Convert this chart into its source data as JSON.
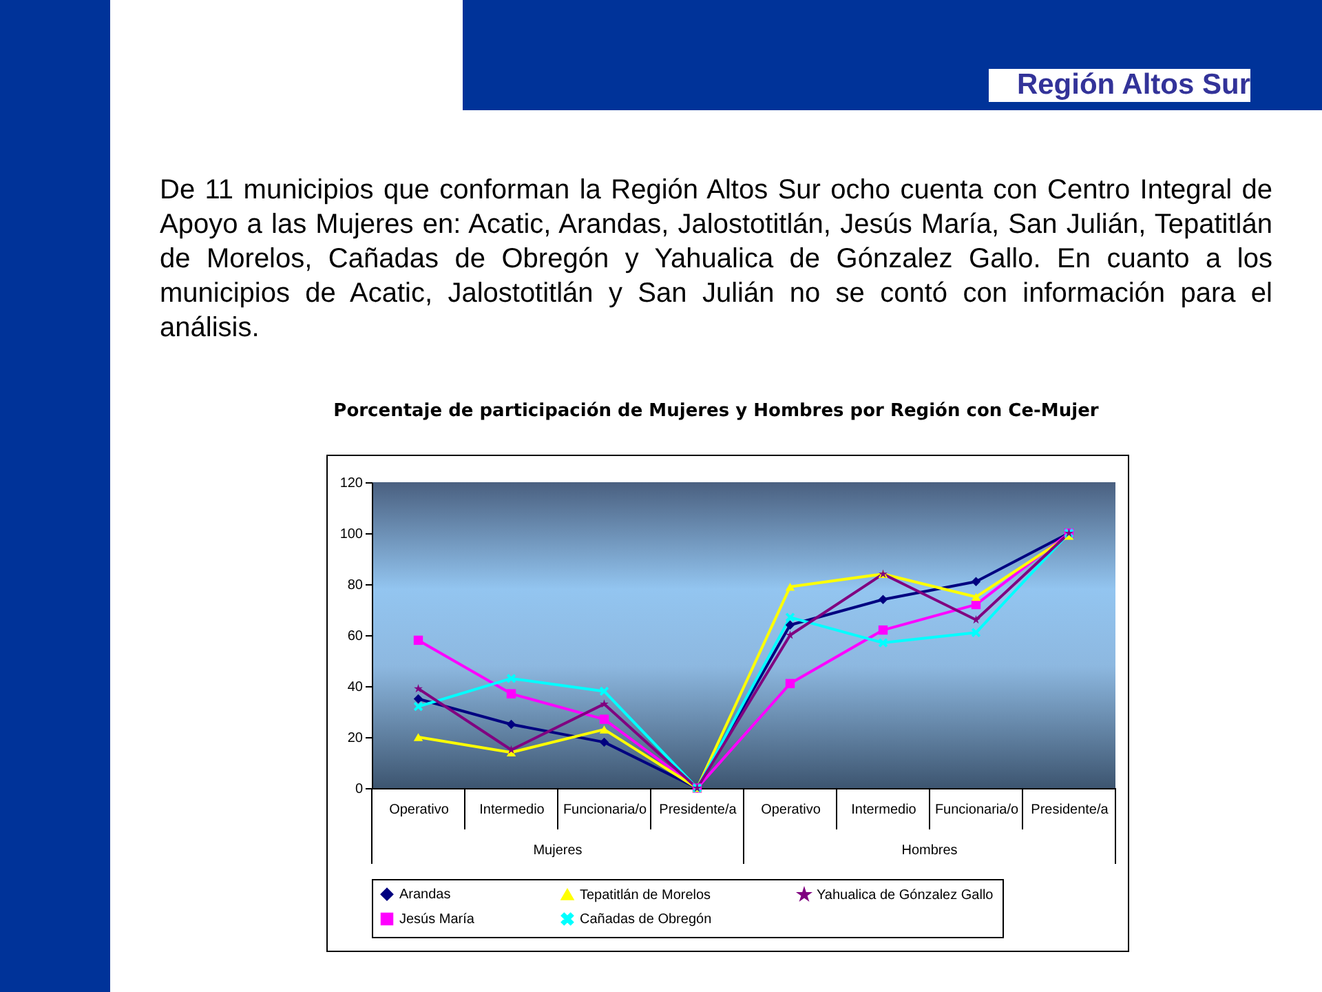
{
  "chart_data": {
    "type": "line",
    "title": "Región Altos Sur",
    "subtitle": "De 11 municipios que conforman la Región Altos Sur ocho cuenta con Centro Integral de Apoyo a las Mujeres en: Acatic, Arandas, Jalostotitlán, Jesús María, San Julián, Tepatitlán de Morelos, Cañadas de Obregón y Yahualica de Gónzalez Gallo. En cuanto a los municipios de Acatic, Jalostotitlán y San Julián no se contó con información para el análisis.",
    "annotations": [
      "Porcentaje de participación de Mujeres y Hombres por Región con Ce-Mujer",
      "Mujeres",
      "Hombres"
    ],
    "categories": [
      "Operativo",
      "Intermedio",
      "Funcionaria/o",
      "Presidente/a",
      "Operativo",
      "Intermedio",
      "Funcionaria/o",
      "Presidente/a"
    ],
    "series": [
      {
        "name": "Arandas",
        "color": "#000080",
        "marker": "diamond",
        "values": [
          35,
          25,
          18,
          0,
          64,
          74,
          81,
          100
        ]
      },
      {
        "name": "Jesús María",
        "color": "#ff00ff",
        "marker": "square",
        "values": [
          58,
          37,
          27,
          0,
          41,
          62,
          72,
          100
        ]
      },
      {
        "name": "Tepatitlán de Morelos",
        "color": "#ffff00",
        "marker": "triangle",
        "values": [
          20,
          14,
          23,
          0,
          79,
          84,
          75,
          99
        ]
      },
      {
        "name": "Cañadas de Obregón",
        "color": "#00ffff",
        "marker": "cross",
        "values": [
          32,
          43,
          38,
          0,
          67,
          57,
          61,
          100
        ]
      },
      {
        "name": "Yahualica de Gónzalez Gallo",
        "color": "#800080",
        "marker": "star",
        "values": [
          39,
          15,
          33,
          0,
          60,
          84,
          66,
          100
        ]
      }
    ],
    "ylim": [
      0,
      120
    ],
    "yticks": [
      0,
      20,
      40,
      60,
      80,
      100,
      120
    ],
    "grid": false,
    "legend": "bottom"
  }
}
